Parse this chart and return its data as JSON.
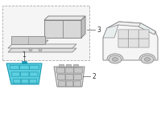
{
  "background_color": "#ffffff",
  "fig_width": 2.0,
  "fig_height": 1.47,
  "dpi": 100,
  "part1_fill": "#5ecfdf",
  "part1_edge": "#1a9ab5",
  "part2_fill": "#e0e0e0",
  "part2_edge": "#888888",
  "part3_fill": "#eeeeee",
  "part3_edge": "#999999",
  "box_fill": "#f5f5f5",
  "box_edge": "#aaaaaa",
  "car_fill": "#f5f5f5",
  "car_edge": "#888888",
  "cell_fill": "#e2e2e2",
  "cell_edge": "#999999",
  "label_color": "#333333",
  "line_color": "#555555"
}
